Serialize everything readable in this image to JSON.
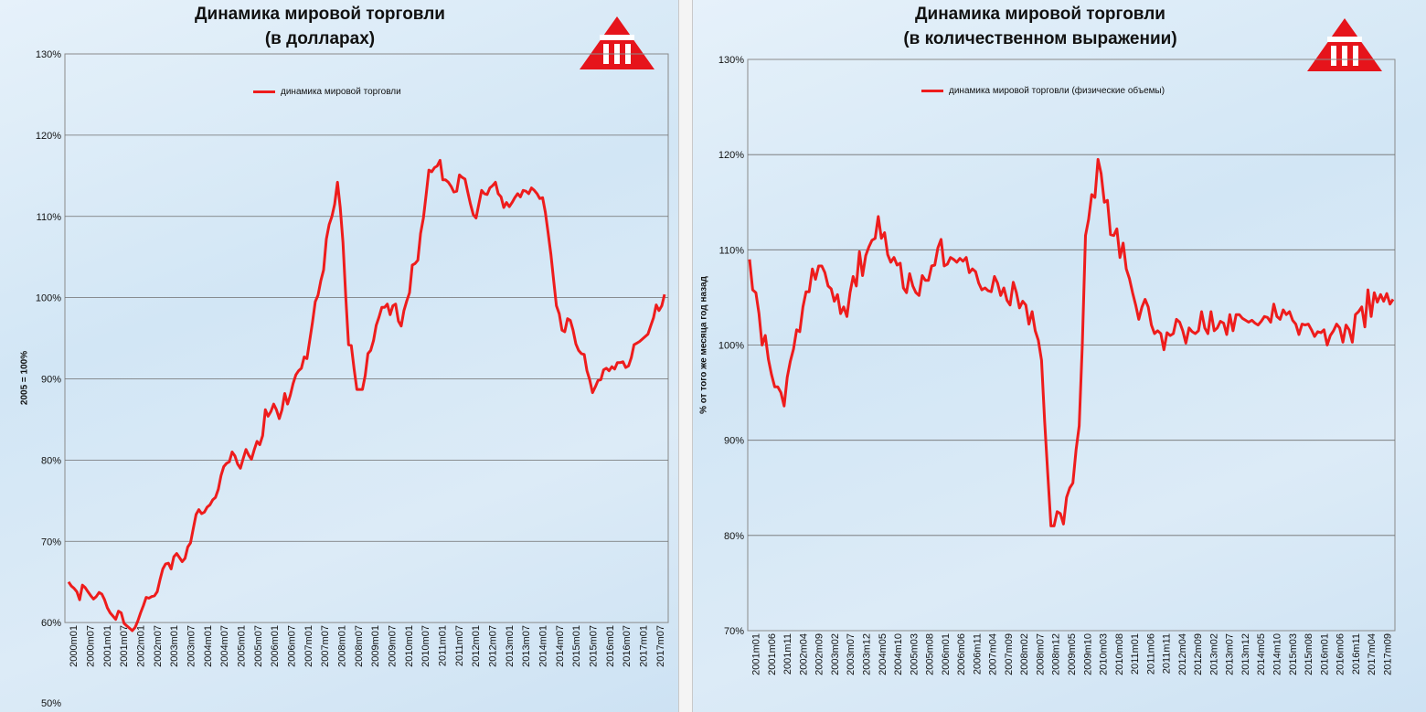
{
  "chart_data": [
    {
      "type": "line",
      "title": [
        "Динамика мировой торговли",
        "(в долларах)"
      ],
      "ylabel": "2005 = 100%",
      "ylim": [
        50,
        130
      ],
      "y_ticks": [
        "50%",
        "60%",
        "70%",
        "80%",
        "90%",
        "100%",
        "110%",
        "120%",
        "130%"
      ],
      "x_ticks": [
        "2000m01",
        "2000m07",
        "2001m01",
        "2001m07",
        "2002m01",
        "2002m07",
        "2003m01",
        "2003m07",
        "2004m01",
        "2004m07",
        "2005m01",
        "2005m07",
        "2006m01",
        "2006m07",
        "2007m01",
        "2007m07",
        "2008m01",
        "2008m07",
        "2009m01",
        "2009m07",
        "2010m01",
        "2010m07",
        "2011m01",
        "2011m07",
        "2012m01",
        "2012m07",
        "2013m01",
        "2013m07",
        "2014m01",
        "2014m07",
        "2015m01",
        "2015m07",
        "2016m01",
        "2016m07",
        "2017m01",
        "2017m07"
      ],
      "legend_position": "top",
      "series": [
        {
          "name": "динамика мировой торговли",
          "color": "#ee1c1c",
          "start": "2000m01",
          "values": [
            65.0,
            64.5,
            64.2,
            63.8,
            62.8,
            64.6,
            64.3,
            63.8,
            63.3,
            62.9,
            63.2,
            63.7,
            63.5,
            62.8,
            61.8,
            61.2,
            60.8,
            60.4,
            61.4,
            61.2,
            59.9,
            59.6,
            59.3,
            59.0,
            59.4,
            60.2,
            61.2,
            62.1,
            63.1,
            63.0,
            63.2,
            63.3,
            63.8,
            65.3,
            66.6,
            67.2,
            67.3,
            66.6,
            68.1,
            68.5,
            68.0,
            67.5,
            67.9,
            69.3,
            69.8,
            71.6,
            73.3,
            73.9,
            73.4,
            73.6,
            74.2,
            74.5,
            75.1,
            75.4,
            76.4,
            78.1,
            79.2,
            79.6,
            79.8,
            81.0,
            80.5,
            79.5,
            79.0,
            80.2,
            81.3,
            80.6,
            80.1,
            81.3,
            82.3,
            81.9,
            83.0,
            86.2,
            85.4,
            86.0,
            86.9,
            86.2,
            85.1,
            86.2,
            88.2,
            86.9,
            88.0,
            89.4,
            90.5,
            91.0,
            91.3,
            92.7,
            92.5,
            94.7,
            97.0,
            99.5,
            100.3,
            102.1,
            103.4,
            107.2,
            109.0,
            110.0,
            111.5,
            114.2,
            111.1,
            106.8,
            100.0,
            94.2,
            94.1,
            91.2,
            88.7,
            88.7,
            88.7,
            90.4,
            93.1,
            93.5,
            94.7,
            96.6,
            97.6,
            98.8,
            98.8,
            99.2,
            97.9,
            99.0,
            99.2,
            97.1,
            96.5,
            98.4,
            99.6,
            100.6,
            104.0,
            104.2,
            104.6,
            107.9,
            109.8,
            112.7,
            115.7,
            115.5,
            116.0,
            116.2,
            116.9,
            114.5,
            114.5,
            114.2,
            113.7,
            113.0,
            113.1,
            115.1,
            114.8,
            114.6,
            113.0,
            111.5,
            110.2,
            109.8,
            111.5,
            113.2,
            112.8,
            112.7,
            113.5,
            113.8,
            114.2,
            112.8,
            112.4,
            111.1,
            111.7,
            111.2,
            111.7,
            112.3,
            112.8,
            112.4,
            113.2,
            113.1,
            112.8,
            113.5,
            113.2,
            112.8,
            112.2,
            112.3,
            110.5,
            108.0,
            105.3,
            102.1,
            99.0,
            98.0,
            96.0,
            95.8,
            97.4,
            97.2,
            96.0,
            94.3,
            93.5,
            93.1,
            93.0,
            91.0,
            89.9,
            88.3,
            89.0,
            89.8,
            89.9,
            91.1,
            91.3,
            91.0,
            91.5,
            91.2,
            92.0,
            92.0,
            92.1,
            91.4,
            91.6,
            92.6,
            94.2,
            94.4,
            94.6,
            94.9,
            95.2,
            95.5,
            96.5,
            97.5,
            99.1,
            98.4,
            99.0,
            100.4
          ]
        }
      ]
    },
    {
      "type": "line",
      "title": [
        "Динамика мировой торговли",
        "(в количественном выражении)"
      ],
      "ylabel": "% от того же месяца год назад",
      "ylim": [
        70,
        130
      ],
      "y_ticks": [
        "70%",
        "80%",
        "90%",
        "100%",
        "110%",
        "120%",
        "130%"
      ],
      "x_ticks": [
        "2001m01",
        "2001m06",
        "2001m11",
        "2002m04",
        "2002m09",
        "2003m02",
        "2003m07",
        "2003m12",
        "2004m05",
        "2004m10",
        "2005m03",
        "2005m08",
        "2006m01",
        "2006m06",
        "2006m11",
        "2007m04",
        "2007m09",
        "2008m02",
        "2008m07",
        "2008m12",
        "2009m05",
        "2009m10",
        "2010m03",
        "2010m08",
        "2011m01",
        "2011m06",
        "2011m11",
        "2012m04",
        "2012m09",
        "2013m02",
        "2013m07",
        "2013m12",
        "2014m05",
        "2014m10",
        "2015m03",
        "2015m08",
        "2016m01",
        "2016m06",
        "2016m11",
        "2017m04",
        "2017m09"
      ],
      "legend_position": "top",
      "series": [
        {
          "name": "динамика мировой торговли (физические объемы)",
          "color": "#ee1c1c",
          "start": "2001m01",
          "values": [
            109.0,
            105.8,
            105.5,
            103.3,
            100.0,
            101.0,
            98.5,
            96.9,
            95.6,
            95.6,
            95.0,
            93.6,
            96.6,
            98.3,
            99.6,
            101.6,
            101.4,
            104.0,
            105.6,
            105.6,
            108.0,
            106.9,
            108.3,
            108.3,
            107.6,
            106.2,
            105.9,
            104.6,
            105.3,
            103.3,
            104.0,
            103.0,
            105.5,
            107.2,
            106.2,
            109.8,
            107.3,
            109.4,
            110.3,
            111.0,
            111.2,
            113.5,
            111.2,
            111.8,
            109.5,
            108.7,
            109.2,
            108.4,
            108.6,
            106.0,
            105.5,
            107.5,
            106.2,
            105.5,
            105.2,
            107.3,
            106.8,
            106.8,
            108.3,
            108.4,
            110.2,
            111.1,
            108.3,
            108.5,
            109.2,
            109.0,
            108.7,
            109.1,
            108.8,
            109.2,
            107.6,
            108.0,
            107.7,
            106.5,
            105.8,
            106.0,
            105.7,
            105.6,
            107.2,
            106.5,
            105.2,
            106.0,
            104.7,
            104.2,
            106.6,
            105.5,
            103.9,
            104.6,
            104.2,
            102.2,
            103.5,
            101.5,
            100.5,
            98.4,
            92.0,
            86.5,
            81.0,
            81.0,
            82.5,
            82.3,
            81.2,
            84.0,
            85.0,
            85.5,
            89.0,
            91.5,
            100.0,
            111.5,
            113.2,
            115.8,
            115.5,
            119.5,
            118.0,
            115.0,
            115.2,
            111.6,
            111.5,
            112.2,
            109.2,
            110.7,
            108.0,
            107.0,
            105.5,
            104.2,
            102.7,
            104.0,
            104.8,
            104.0,
            102.1,
            101.2,
            101.5,
            101.2,
            99.5,
            101.3,
            101.0,
            101.2,
            102.7,
            102.4,
            101.5,
            100.2,
            101.8,
            101.4,
            101.2,
            101.5,
            103.5,
            101.8,
            101.2,
            103.5,
            101.5,
            101.8,
            102.5,
            102.3,
            101.1,
            103.2,
            101.5,
            103.2,
            103.2,
            102.8,
            102.6,
            102.4,
            102.6,
            102.3,
            102.1,
            102.5,
            103.0,
            102.9,
            102.4,
            104.3,
            103.0,
            102.7,
            103.7,
            103.2,
            103.5,
            102.6,
            102.2,
            101.1,
            102.2,
            102.1,
            102.2,
            101.6,
            100.9,
            101.4,
            101.3,
            101.6,
            100.0,
            101.0,
            101.5,
            102.2,
            101.8,
            100.3,
            102.1,
            101.6,
            100.3,
            103.2,
            103.5,
            104.0,
            101.9,
            105.8,
            103.0,
            105.5,
            104.5,
            105.3,
            104.6,
            105.4,
            104.3,
            104.8
          ]
        }
      ]
    }
  ]
}
